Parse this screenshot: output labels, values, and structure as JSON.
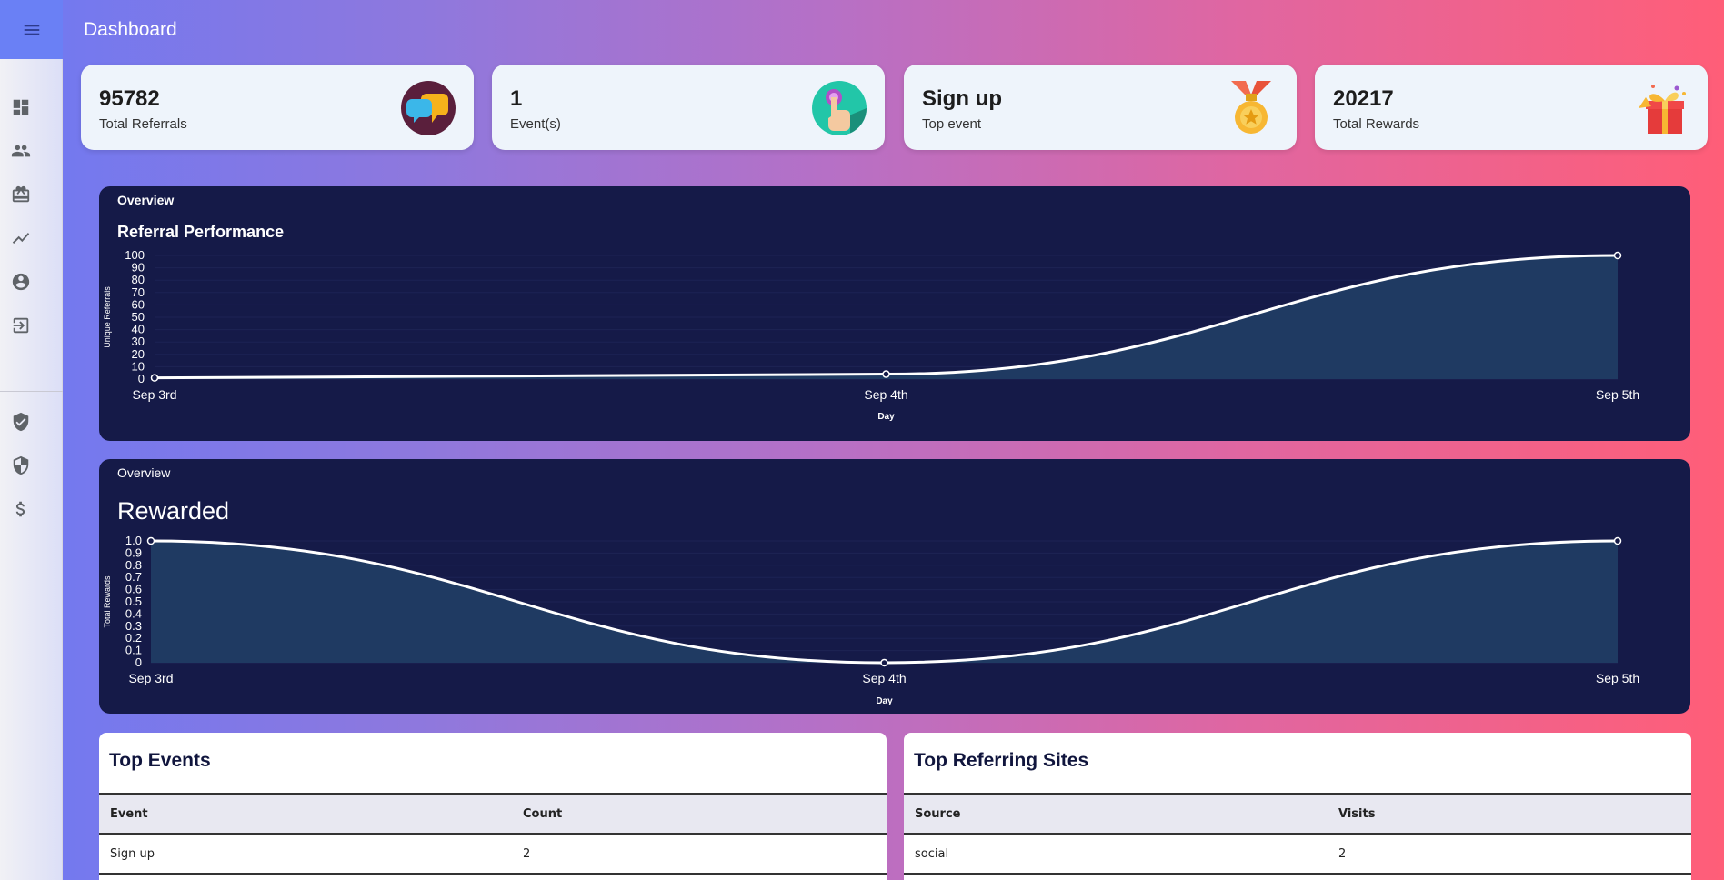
{
  "appbar": {
    "title": "Dashboard",
    "menu_icon": "menu-icon"
  },
  "sidebar": {
    "items": [
      {
        "name": "dashboard-icon"
      },
      {
        "name": "users-icon"
      },
      {
        "name": "rewards-icon"
      },
      {
        "name": "analytics-icon"
      },
      {
        "name": "account-icon"
      },
      {
        "name": "logout-icon"
      },
      {
        "name": "verified-shield-icon"
      },
      {
        "name": "security-shield-icon"
      },
      {
        "name": "dollar-icon"
      }
    ]
  },
  "stats": [
    {
      "value": "95782",
      "label": "Total Referrals",
      "icon": "chat-bubbles-icon"
    },
    {
      "value": "1",
      "label": "Event(s)",
      "icon": "tap-hand-icon"
    },
    {
      "value": "Sign up",
      "label": "Top event",
      "icon": "medal-icon"
    },
    {
      "value": "20217",
      "label": "Total Rewards",
      "icon": "gift-icon"
    }
  ],
  "panels": [
    {
      "overline": "Overview",
      "title": "Referral Performance"
    },
    {
      "overline": "Overview",
      "title": "Rewarded"
    }
  ],
  "chart_data": [
    {
      "type": "area",
      "title": "Referral Performance",
      "xlabel": "Day",
      "ylabel": "Unique Referrals",
      "x": [
        "Sep 3rd",
        "Sep 4th",
        "Sep 5th"
      ],
      "values": [
        1,
        4,
        100
      ],
      "ylim": [
        0,
        100
      ],
      "yticks": [
        "0",
        "10",
        "20",
        "30",
        "40",
        "50",
        "60",
        "70",
        "80",
        "90",
        "100"
      ],
      "colors": {
        "line": "#ffffff",
        "fill": "#1f3a62",
        "background": "#151a48"
      }
    },
    {
      "type": "area",
      "title": "Rewarded",
      "xlabel": "Day",
      "ylabel": "Total Rewards",
      "x": [
        "Sep 3rd",
        "Sep 4th",
        "Sep 5th"
      ],
      "values": [
        1,
        0,
        1
      ],
      "ylim": [
        0,
        1
      ],
      "yticks": [
        "0",
        "0.1",
        "0.2",
        "0.3",
        "0.4",
        "0.5",
        "0.6",
        "0.7",
        "0.8",
        "0.9",
        "1.0"
      ],
      "colors": {
        "line": "#ffffff",
        "fill": "#1f3a62",
        "background": "#151a48"
      }
    }
  ],
  "top_events": {
    "title": "Top Events",
    "columns": [
      "Event",
      "Count"
    ],
    "rows": [
      [
        "Sign up",
        "2"
      ]
    ]
  },
  "top_sites": {
    "title": "Top Referring Sites",
    "columns": [
      "Source",
      "Visits"
    ],
    "rows": [
      [
        "social",
        "2"
      ]
    ]
  }
}
